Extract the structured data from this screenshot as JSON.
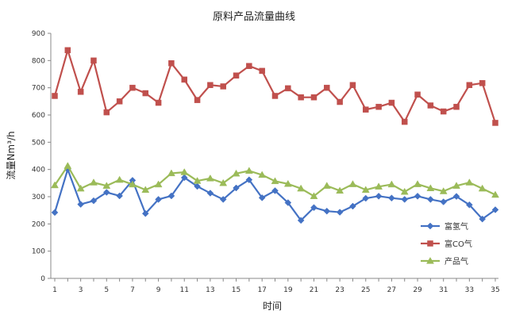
{
  "chart_data": {
    "type": "line",
    "title": "原料产品流量曲线",
    "xlabel": "时间",
    "ylabel": "流量Nm³/h",
    "ylim": [
      0,
      900
    ],
    "yticks": [
      0,
      100,
      200,
      300,
      400,
      500,
      600,
      700,
      800,
      900
    ],
    "xticks": [
      1,
      3,
      5,
      7,
      9,
      11,
      13,
      15,
      17,
      19,
      21,
      23,
      25,
      27,
      29,
      31,
      33,
      35
    ],
    "x": [
      1,
      2,
      3,
      4,
      5,
      6,
      7,
      8,
      9,
      10,
      11,
      12,
      13,
      14,
      15,
      16,
      17,
      18,
      19,
      20,
      21,
      22,
      23,
      24,
      25,
      26,
      27,
      28,
      29,
      30,
      31,
      32,
      33,
      34,
      35
    ],
    "grid": false,
    "legend_position": "right",
    "series": [
      {
        "name": "富氢气",
        "color": "#4472C4",
        "marker": "diamond",
        "values": [
          242,
          400,
          272,
          285,
          316,
          303,
          360,
          238,
          290,
          303,
          370,
          338,
          313,
          290,
          332,
          362,
          296,
          322,
          278,
          213,
          260,
          247,
          243,
          265,
          294,
          302,
          295,
          290,
          302,
          290,
          281,
          301,
          270,
          218,
          252
        ]
      },
      {
        "name": "富CO气",
        "color": "#C0504D",
        "marker": "square",
        "values": [
          670,
          838,
          685,
          800,
          610,
          650,
          700,
          680,
          645,
          790,
          730,
          655,
          710,
          705,
          745,
          780,
          762,
          670,
          698,
          665,
          665,
          700,
          648,
          710,
          620,
          630,
          645,
          575,
          675,
          635,
          613,
          630,
          710,
          717,
          571
        ]
      },
      {
        "name": "产品气",
        "color": "#9BBB59",
        "marker": "triangle",
        "values": [
          342,
          413,
          330,
          352,
          340,
          362,
          345,
          325,
          345,
          386,
          390,
          358,
          367,
          350,
          385,
          395,
          380,
          357,
          347,
          330,
          302,
          340,
          322,
          346,
          325,
          337,
          345,
          318,
          346,
          331,
          320,
          340,
          352,
          330,
          307
        ]
      }
    ]
  }
}
